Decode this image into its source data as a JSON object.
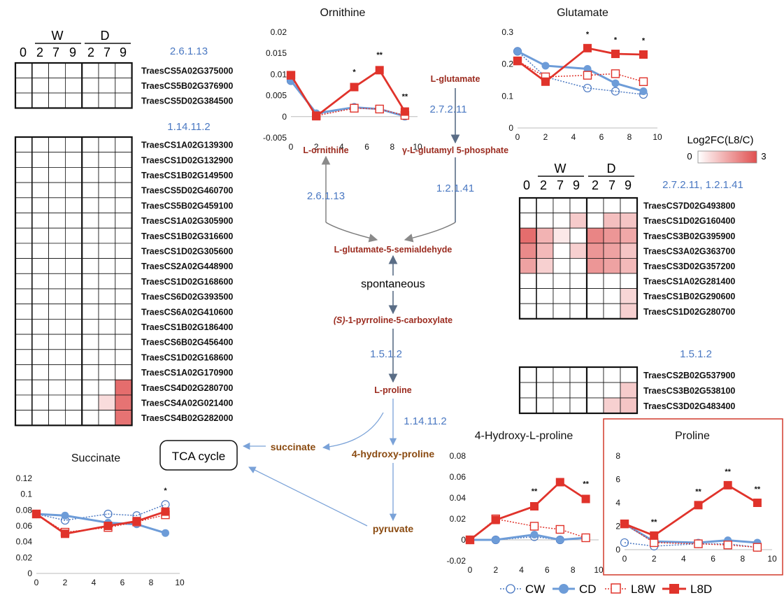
{
  "colors": {
    "CW": "#4a78c2",
    "CD": "#6d9cd8",
    "L8W": "#e0332b",
    "L8D": "#e0332b",
    "ec": "#4a78c2",
    "metabolite": "#9b2b1f",
    "heat_max": "#e05050"
  },
  "heatmap": {
    "header": {
      "groups": [
        "W",
        "D"
      ],
      "columns": [
        "0",
        "2",
        "7",
        "9",
        "2",
        "7",
        "9"
      ]
    },
    "legend": {
      "title": "Log2FC(L8/C)",
      "min": "0",
      "max": "3"
    },
    "blocks": [
      {
        "ec": "2.6.1.13",
        "genes": [
          "TraesCS5A02G375000",
          "TraesCS5B02G376900",
          "TraesCS5D02G384500"
        ],
        "values": [
          [
            0,
            0,
            0,
            0,
            0,
            0,
            0
          ],
          [
            0,
            0,
            0,
            0,
            0,
            0,
            0
          ],
          [
            0,
            0,
            0,
            0,
            0,
            0,
            0
          ]
        ]
      },
      {
        "ec": "1.14.11.2",
        "genes": [
          "TraesCS1A02G139300",
          "TraesCS1D02G132900",
          "TraesCS1B02G149500",
          "TraesCS5D02G460700",
          "TraesCS5B02G459100",
          "TraesCS1A02G305900",
          "TraesCS1B02G316600",
          "TraesCS1D02G305600",
          "TraesCS2A02G448900",
          "TraesCS1D02G168600",
          "TraesCS6D02G393500",
          "TraesCS6A02G410600",
          "TraesCS1B02G186400",
          "TraesCS6B02G456400",
          "TraesCS1D02G168600",
          "TraesCS1A02G170900",
          "TraesCS4D02G280700",
          "TraesCS4A02G021400",
          "TraesCS4B02G282000"
        ],
        "values": [
          [
            0,
            0,
            0,
            0,
            0,
            0,
            0
          ],
          [
            0,
            0,
            0,
            0,
            0,
            0,
            0
          ],
          [
            0,
            0,
            0,
            0,
            0,
            0,
            0
          ],
          [
            0,
            0,
            0,
            0,
            0,
            0,
            0
          ],
          [
            0,
            0,
            0,
            0,
            0,
            0,
            0
          ],
          [
            0,
            0,
            0,
            0,
            0,
            0,
            0
          ],
          [
            0,
            0,
            0,
            0,
            0,
            0,
            0
          ],
          [
            0,
            0,
            0,
            0,
            0,
            0,
            0
          ],
          [
            0,
            0,
            0,
            0,
            0,
            0,
            0
          ],
          [
            0,
            0,
            0,
            0,
            0,
            0,
            0
          ],
          [
            0,
            0,
            0,
            0,
            0,
            0,
            0
          ],
          [
            0,
            0,
            0,
            0,
            0,
            0,
            0
          ],
          [
            0,
            0,
            0,
            0,
            0,
            0,
            0
          ],
          [
            0,
            0,
            0,
            0,
            0,
            0,
            0
          ],
          [
            0,
            0,
            0,
            0,
            0,
            0,
            0
          ],
          [
            0,
            0,
            0,
            0,
            0,
            0,
            0
          ],
          [
            0,
            0,
            0,
            0,
            0,
            0,
            2.5
          ],
          [
            0,
            0,
            0,
            0,
            0,
            0.6,
            2.4
          ],
          [
            0,
            0,
            0,
            0,
            0,
            0,
            2.4
          ]
        ]
      },
      {
        "ec": "2.7.2.11, 1.2.1.41",
        "genes": [
          "TraesCS7D02G493800",
          "TraesCS1D02G160400",
          "TraesCS3B02G395900",
          "TraesCS3A02G363700",
          "TraesCS3D02G357200",
          "TraesCS1A02G281400",
          "TraesCS1B02G290600",
          "TraesCS1D02G280700"
        ],
        "values": [
          [
            0,
            0,
            0,
            0,
            0,
            0,
            0
          ],
          [
            0,
            0,
            0,
            0.9,
            0,
            1.1,
            1.0
          ],
          [
            2.5,
            1.3,
            0.4,
            0,
            2.1,
            1.8,
            1.5
          ],
          [
            2.0,
            1.2,
            0,
            0.8,
            1.8,
            1.6,
            1.0
          ],
          [
            1.6,
            0.8,
            0,
            0,
            1.8,
            1.6,
            1.2
          ],
          [
            0,
            0,
            0,
            0,
            0,
            0,
            0
          ],
          [
            0,
            0,
            0,
            0,
            0,
            0,
            0.7
          ],
          [
            0,
            0,
            0,
            0,
            0,
            0,
            0.8
          ]
        ]
      },
      {
        "ec": "1.5.1.2",
        "genes": [
          "TraesCS2B02G537900",
          "TraesCS3B02G538100",
          "TraesCS3D02G483400"
        ],
        "values": [
          [
            0,
            0,
            0,
            0,
            0,
            0,
            0
          ],
          [
            0,
            0,
            0,
            0,
            0,
            0,
            0.9
          ],
          [
            0,
            0,
            0,
            0,
            0,
            0.8,
            1.0
          ]
        ]
      }
    ]
  },
  "pathway": {
    "metabolites": {
      "glutamate": "L-glutamate",
      "ornithine": "L-ornithine",
      "glutamyl_p": "γ-L-glutamyl 5-phosphate",
      "semialdehyde": "L-glutamate-5-semialdehyde",
      "p5c": "-1-pyrroline-5-carboxylate",
      "p5c_prefix": "(S)",
      "proline": "L-proline",
      "hydroxyproline": "4-hydroxy-proline",
      "succinate": "succinate",
      "pyruvate": "pyruvate",
      "tca": "TCA cycle"
    },
    "enzymes": {
      "e1": "2.7.2.11",
      "e2": "1.2.1.41",
      "e3": "2.6.1.13",
      "e4": "1.5.1.2",
      "e5": "1.14.11.2"
    },
    "spontaneous": "spontaneous"
  },
  "legend": {
    "items": [
      "CW",
      "CD",
      "L8W",
      "L8D"
    ]
  },
  "chart_data": [
    {
      "type": "line",
      "title": "Ornithine",
      "x": [
        0,
        2,
        5,
        7,
        9
      ],
      "xlim": [
        0,
        10
      ],
      "xticks": [
        "0",
        "2",
        "4",
        "6",
        "8",
        "10"
      ],
      "ylim": [
        -0.005,
        0.02
      ],
      "yticks": [
        "-0.005",
        "0",
        "0.005",
        "0.01",
        "0.015",
        "0.02"
      ],
      "series": [
        {
          "name": "CW",
          "values": [
            0.0085,
            0.0005,
            0.0022,
            0.0018,
            0.0001
          ]
        },
        {
          "name": "CD",
          "values": [
            0.0085,
            0.0008,
            0.0022,
            0.0018,
            0.0001
          ]
        },
        {
          "name": "L8W",
          "values": [
            0.0098,
            0.0002,
            0.002,
            0.0018,
            0.0003
          ]
        },
        {
          "name": "L8D",
          "values": [
            0.0098,
            0.0001,
            0.007,
            0.011,
            0.0012
          ]
        }
      ],
      "stars": [
        {
          "x": 5,
          "label": "*"
        },
        {
          "x": 7,
          "label": "**"
        },
        {
          "x": 9,
          "label": "**"
        }
      ]
    },
    {
      "type": "line",
      "title": "Glutamate",
      "x": [
        0,
        2,
        5,
        7,
        9
      ],
      "xlim": [
        0,
        10
      ],
      "xticks": [
        "0",
        "2",
        "4",
        "6",
        "8",
        "10"
      ],
      "ylim": [
        0,
        0.3
      ],
      "yticks": [
        "0",
        "0.1",
        "0.2",
        "0.3"
      ],
      "series": [
        {
          "name": "CW",
          "values": [
            0.24,
            0.16,
            0.125,
            0.115,
            0.105
          ]
        },
        {
          "name": "CD",
          "values": [
            0.24,
            0.195,
            0.185,
            0.14,
            0.115
          ]
        },
        {
          "name": "L8W",
          "values": [
            0.21,
            0.16,
            0.165,
            0.17,
            0.145
          ]
        },
        {
          "name": "L8D",
          "values": [
            0.21,
            0.145,
            0.25,
            0.232,
            0.23
          ]
        }
      ],
      "stars": [
        {
          "x": 5,
          "label": "*"
        },
        {
          "x": 7,
          "label": "*"
        },
        {
          "x": 9,
          "label": "*"
        }
      ]
    },
    {
      "type": "line",
      "title": "Succinate",
      "x": [
        0,
        2,
        5,
        7,
        9
      ],
      "xlim": [
        0,
        10
      ],
      "xticks": [
        "0",
        "2",
        "4",
        "6",
        "8",
        "10"
      ],
      "ylim": [
        0,
        0.12
      ],
      "yticks": [
        "0",
        "0.02",
        "0.04",
        "0.06",
        "0.08",
        "0.1",
        "0.12"
      ],
      "series": [
        {
          "name": "CW",
          "values": [
            0.075,
            0.067,
            0.075,
            0.073,
            0.087
          ]
        },
        {
          "name": "CD",
          "values": [
            0.075,
            0.073,
            0.064,
            0.062,
            0.051
          ]
        },
        {
          "name": "L8W",
          "values": [
            0.075,
            0.052,
            0.058,
            0.065,
            0.074
          ]
        },
        {
          "name": "L8D",
          "values": [
            0.075,
            0.05,
            0.06,
            0.066,
            0.078
          ]
        }
      ],
      "stars": [
        {
          "x": 9,
          "label": "*"
        }
      ]
    },
    {
      "type": "line",
      "title": "4-Hydroxy-L-proline",
      "x": [
        0,
        2,
        5,
        7,
        9
      ],
      "xlim": [
        0,
        10
      ],
      "xticks": [
        "0",
        "2",
        "4",
        "6",
        "8",
        "10"
      ],
      "ylim": [
        -0.02,
        0.08
      ],
      "yticks": [
        "-0.02",
        "0",
        "0.02",
        "0.04",
        "0.06",
        "0.08"
      ],
      "series": [
        {
          "name": "CW",
          "values": [
            0,
            0,
            0.003,
            0,
            0.002
          ]
        },
        {
          "name": "CD",
          "values": [
            0,
            0,
            0.005,
            0,
            0.002
          ]
        },
        {
          "name": "L8W",
          "values": [
            0,
            0.02,
            0.013,
            0.01,
            0.002
          ]
        },
        {
          "name": "L8D",
          "values": [
            0,
            0.019,
            0.032,
            0.055,
            0.039
          ]
        }
      ],
      "stars": [
        {
          "x": 5,
          "label": "**"
        },
        {
          "x": 9,
          "label": "**"
        }
      ]
    },
    {
      "type": "line",
      "title": "Proline",
      "x": [
        0,
        2,
        5,
        7,
        9
      ],
      "xlim": [
        0,
        10
      ],
      "xticks": [
        "0",
        "2",
        "4",
        "6",
        "8",
        "10"
      ],
      "ylim": [
        0,
        8
      ],
      "yticks": [
        "0",
        "2",
        "4",
        "6",
        "8"
      ],
      "series": [
        {
          "name": "CW",
          "values": [
            0.6,
            0.3,
            0.5,
            0.5,
            0.2
          ]
        },
        {
          "name": "CD",
          "values": [
            2.2,
            0.7,
            0.6,
            0.8,
            0.6
          ]
        },
        {
          "name": "L8W",
          "values": [
            2.2,
            0.6,
            0.5,
            0.4,
            0.2
          ]
        },
        {
          "name": "L8D",
          "values": [
            2.2,
            1.2,
            3.8,
            5.5,
            4.0
          ]
        }
      ],
      "stars": [
        {
          "x": 2,
          "label": "**"
        },
        {
          "x": 5,
          "label": "**"
        },
        {
          "x": 7,
          "label": "**"
        },
        {
          "x": 9,
          "label": "**"
        }
      ]
    }
  ]
}
